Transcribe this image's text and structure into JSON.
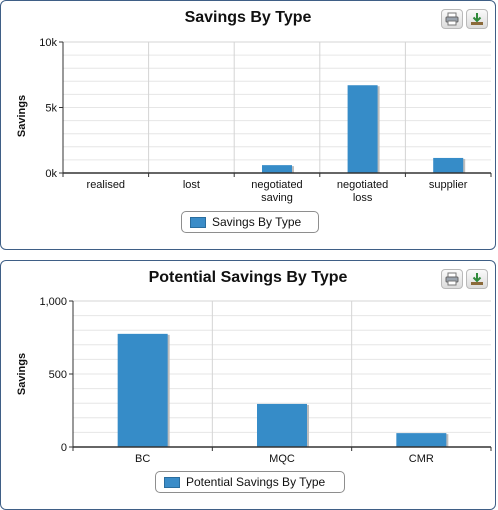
{
  "colors": {
    "bar": "#368CC8",
    "bar_shadow": "#bdbdbd",
    "grid": "#d4d4d4",
    "axis": "#333333",
    "frame": "#3f5f86"
  },
  "toolbar": {
    "print_icon": "print-icon",
    "download_icon": "download-icon"
  },
  "chart_data": [
    {
      "type": "bar",
      "title": "Savings By Type",
      "ylabel": "Savings",
      "xlabel": "",
      "categories": [
        "realised",
        "lost",
        "negotiated saving",
        "negotiated loss",
        "supplier"
      ],
      "category_lines": [
        [
          "realised"
        ],
        [
          "lost"
        ],
        [
          "negotiated",
          "saving"
        ],
        [
          "negotiated",
          "loss"
        ],
        [
          "supplier"
        ]
      ],
      "series": [
        {
          "name": "Savings By Type",
          "values": [
            0,
            0,
            600,
            6700,
            1150
          ]
        }
      ],
      "ylim": [
        0,
        10000
      ],
      "yticks": [
        0,
        5000,
        10000
      ],
      "ytick_labels": [
        "0k",
        "5k",
        "10k"
      ],
      "minor_step": 1000,
      "grid": true,
      "legend": "bottom-center"
    },
    {
      "type": "bar",
      "title": "Potential Savings By Type",
      "ylabel": "Savings",
      "xlabel": "",
      "categories": [
        "BC",
        "MQC",
        "CMR"
      ],
      "category_lines": [
        [
          "BC"
        ],
        [
          "MQC"
        ],
        [
          "CMR"
        ]
      ],
      "series": [
        {
          "name": "Potential Savings By Type",
          "values": [
            775,
            295,
            95
          ]
        }
      ],
      "ylim": [
        0,
        1000
      ],
      "yticks": [
        0,
        500,
        1000
      ],
      "ytick_labels": [
        "0",
        "500",
        "1,000"
      ],
      "minor_step": 100,
      "grid": true,
      "legend": "bottom-center"
    }
  ]
}
